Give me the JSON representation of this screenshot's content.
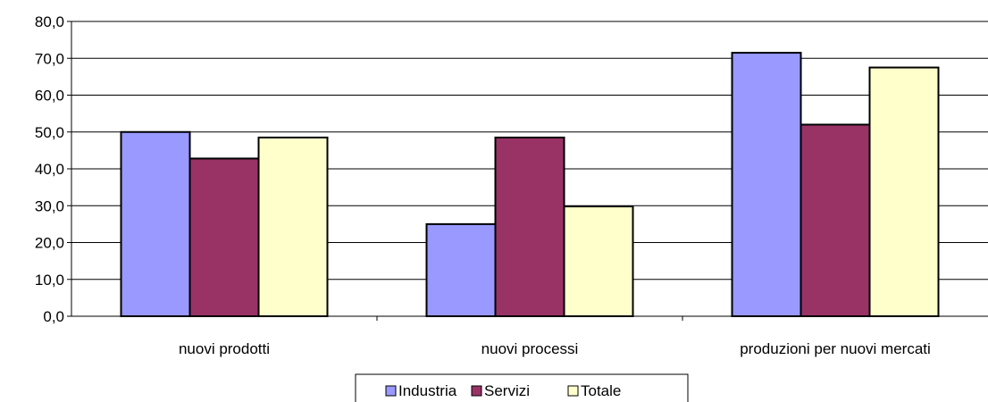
{
  "chart_data": {
    "type": "bar",
    "categories": [
      "nuovi prodotti",
      "nuovi processi",
      "produzioni per nuovi mercati"
    ],
    "series": [
      {
        "name": "Industria",
        "values": [
          50.0,
          25.0,
          71.5
        ],
        "color": "#9999ff"
      },
      {
        "name": "Servizi",
        "values": [
          42.8,
          48.5,
          52.0
        ],
        "color": "#993366"
      },
      {
        "name": "Totale",
        "values": [
          48.5,
          29.8,
          67.5
        ],
        "color": "#ffffcc"
      }
    ],
    "y_ticks": [
      "0,0",
      "10,0",
      "20,0",
      "30,0",
      "40,0",
      "50,0",
      "60,0",
      "70,0",
      "80,0"
    ],
    "ylim": [
      0,
      80
    ],
    "grid": true,
    "legend_position": "bottom"
  }
}
